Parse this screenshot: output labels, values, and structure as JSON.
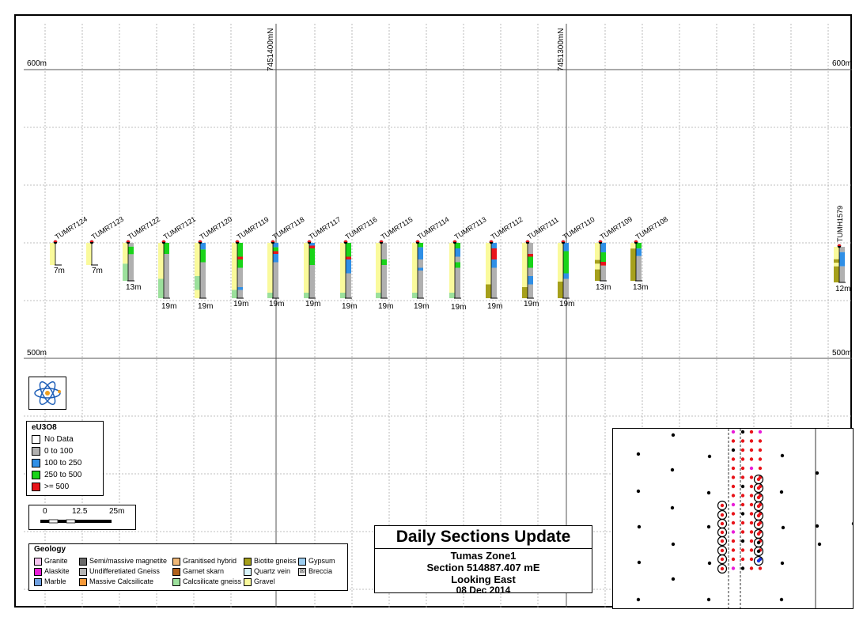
{
  "section": {
    "northing_labels": [
      "7451400mN",
      "7451300mN"
    ],
    "elevation_labels": {
      "top": "600m",
      "bottom": "500m"
    }
  },
  "holes": [
    {
      "id": "TUMR7124",
      "depth": "7m",
      "intervals": [
        {
          "side": "L",
          "from": 0,
          "to": 1,
          "geo": "Gravel"
        },
        {
          "side": "R",
          "from": 0,
          "to": 1,
          "geo": "NoData"
        }
      ]
    },
    {
      "id": "TUMR7123",
      "depth": "7m",
      "intervals": [
        {
          "side": "L",
          "from": 0,
          "to": 1,
          "geo": "Gravel"
        },
        {
          "side": "R",
          "from": 0,
          "to": 1,
          "geo": "NoData"
        }
      ]
    },
    {
      "id": "TUMR7122",
      "depth": "13m",
      "intervals": [
        {
          "side": "L",
          "from": 0,
          "to": 0.55,
          "geo": "Gravel"
        },
        {
          "side": "L",
          "from": 0.55,
          "to": 1,
          "geo": "Calcsilicate gneiss"
        },
        {
          "side": "R",
          "from": 0,
          "to": 0.1,
          "geo": "Grey"
        },
        {
          "side": "R",
          "from": 0.1,
          "to": 0.3,
          "geo": "Green"
        },
        {
          "side": "R",
          "from": 0.3,
          "to": 1,
          "geo": "Grey"
        }
      ]
    },
    {
      "id": "TUMR7121",
      "depth": "19m",
      "intervals": [
        {
          "side": "L",
          "from": 0,
          "to": 0.65,
          "geo": "Gravel"
        },
        {
          "side": "L",
          "from": 0.65,
          "to": 1,
          "geo": "Calcsilicate gneiss"
        },
        {
          "side": "R",
          "from": 0,
          "to": 0.2,
          "geo": "Green"
        },
        {
          "side": "R",
          "from": 0.2,
          "to": 1,
          "geo": "Grey"
        }
      ]
    },
    {
      "id": "TUMR7120",
      "depth": "19m",
      "intervals": [
        {
          "side": "L",
          "from": 0,
          "to": 0.6,
          "geo": "Gravel"
        },
        {
          "side": "L",
          "from": 0.6,
          "to": 0.85,
          "geo": "Calcsilicate gneiss"
        },
        {
          "side": "L",
          "from": 0.85,
          "to": 1,
          "geo": "Gravel"
        },
        {
          "side": "R",
          "from": 0,
          "to": 0.12,
          "geo": "Blue"
        },
        {
          "side": "R",
          "from": 0.12,
          "to": 0.35,
          "geo": "Green"
        },
        {
          "side": "R",
          "from": 0.35,
          "to": 1,
          "geo": "Grey"
        }
      ]
    },
    {
      "id": "TUMR7119",
      "depth": "19m",
      "intervals": [
        {
          "side": "L",
          "from": 0,
          "to": 0.85,
          "geo": "Gravel"
        },
        {
          "side": "L",
          "from": 0.85,
          "to": 1,
          "geo": "Calcsilicate gneiss"
        },
        {
          "side": "R",
          "from": 0,
          "to": 0.25,
          "geo": "Green"
        },
        {
          "side": "R",
          "from": 0.25,
          "to": 0.3,
          "geo": "Red"
        },
        {
          "side": "R",
          "from": 0.3,
          "to": 0.45,
          "geo": "Green"
        },
        {
          "side": "R",
          "from": 0.45,
          "to": 0.8,
          "geo": "Grey"
        },
        {
          "side": "R",
          "from": 0.8,
          "to": 0.85,
          "geo": "Blue"
        },
        {
          "side": "R",
          "from": 0.85,
          "to": 1,
          "geo": "Grey"
        }
      ]
    },
    {
      "id": "TUMR7118",
      "depth": "19m",
      "intervals": [
        {
          "side": "L",
          "from": 0,
          "to": 0.9,
          "geo": "Gravel"
        },
        {
          "side": "L",
          "from": 0.9,
          "to": 1,
          "geo": "Calcsilicate gneiss"
        },
        {
          "side": "R",
          "from": 0,
          "to": 0.08,
          "geo": "Blue"
        },
        {
          "side": "R",
          "from": 0.08,
          "to": 0.15,
          "geo": "Green"
        },
        {
          "side": "R",
          "from": 0.15,
          "to": 0.2,
          "geo": "Red"
        },
        {
          "side": "R",
          "from": 0.2,
          "to": 0.35,
          "geo": "Blue"
        },
        {
          "side": "R",
          "from": 0.35,
          "to": 1,
          "geo": "Grey"
        }
      ]
    },
    {
      "id": "TUMR7117",
      "depth": "19m",
      "intervals": [
        {
          "side": "L",
          "from": 0,
          "to": 0.9,
          "geo": "Gravel"
        },
        {
          "side": "L",
          "from": 0.9,
          "to": 1,
          "geo": "Calcsilicate gneiss"
        },
        {
          "side": "R",
          "from": 0,
          "to": 0.05,
          "geo": "Blue"
        },
        {
          "side": "R",
          "from": 0.05,
          "to": 0.1,
          "geo": "Red"
        },
        {
          "side": "R",
          "from": 0.1,
          "to": 0.4,
          "geo": "Green"
        },
        {
          "side": "R",
          "from": 0.4,
          "to": 1,
          "geo": "Grey"
        }
      ]
    },
    {
      "id": "TUMR7116",
      "depth": "19m",
      "intervals": [
        {
          "side": "L",
          "from": 0,
          "to": 0.9,
          "geo": "Gravel"
        },
        {
          "side": "L",
          "from": 0.9,
          "to": 1,
          "geo": "Calcsilicate gneiss"
        },
        {
          "side": "R",
          "from": 0,
          "to": 0.25,
          "geo": "Green"
        },
        {
          "side": "R",
          "from": 0.25,
          "to": 0.3,
          "geo": "Red"
        },
        {
          "side": "R",
          "from": 0.3,
          "to": 0.55,
          "geo": "Blue"
        },
        {
          "side": "R",
          "from": 0.55,
          "to": 1,
          "geo": "Grey"
        }
      ]
    },
    {
      "id": "TUMR7115",
      "depth": "19m",
      "intervals": [
        {
          "side": "L",
          "from": 0,
          "to": 0.9,
          "geo": "Gravel"
        },
        {
          "side": "L",
          "from": 0.9,
          "to": 1,
          "geo": "Calcsilicate gneiss"
        },
        {
          "side": "R",
          "from": 0,
          "to": 0.3,
          "geo": "Grey"
        },
        {
          "side": "R",
          "from": 0.3,
          "to": 0.4,
          "geo": "Green"
        },
        {
          "side": "R",
          "from": 0.4,
          "to": 1,
          "geo": "Grey"
        }
      ]
    },
    {
      "id": "TUMR7114",
      "depth": "19m",
      "intervals": [
        {
          "side": "L",
          "from": 0,
          "to": 0.9,
          "geo": "Gravel"
        },
        {
          "side": "L",
          "from": 0.9,
          "to": 1,
          "geo": "Calcsilicate gneiss"
        },
        {
          "side": "R",
          "from": 0,
          "to": 0.08,
          "geo": "Green"
        },
        {
          "side": "R",
          "from": 0.08,
          "to": 0.3,
          "geo": "Blue"
        },
        {
          "side": "R",
          "from": 0.3,
          "to": 0.45,
          "geo": "Grey"
        },
        {
          "side": "R",
          "from": 0.45,
          "to": 0.5,
          "geo": "Blue"
        },
        {
          "side": "R",
          "from": 0.5,
          "to": 1,
          "geo": "Grey"
        }
      ]
    },
    {
      "id": "TUMR7113",
      "depth": "19m",
      "intervals": [
        {
          "side": "L",
          "from": 0,
          "to": 0.9,
          "geo": "Gravel"
        },
        {
          "side": "L",
          "from": 0.9,
          "to": 1,
          "geo": "Calcsilicate gneiss"
        },
        {
          "side": "R",
          "from": 0,
          "to": 0.1,
          "geo": "Green"
        },
        {
          "side": "R",
          "from": 0.1,
          "to": 0.25,
          "geo": "Blue"
        },
        {
          "side": "R",
          "from": 0.25,
          "to": 0.35,
          "geo": "Grey"
        },
        {
          "side": "R",
          "from": 0.35,
          "to": 0.45,
          "geo": "Green"
        },
        {
          "side": "R",
          "from": 0.45,
          "to": 1,
          "geo": "Grey"
        }
      ]
    },
    {
      "id": "TUMR7112",
      "depth": "19m",
      "intervals": [
        {
          "side": "L",
          "from": 0,
          "to": 0.75,
          "geo": "Gravel"
        },
        {
          "side": "L",
          "from": 0.75,
          "to": 1,
          "geo": "Biotite gneiss"
        },
        {
          "side": "R",
          "from": 0,
          "to": 0.1,
          "geo": "Blue"
        },
        {
          "side": "R",
          "from": 0.1,
          "to": 0.3,
          "geo": "Red"
        },
        {
          "side": "R",
          "from": 0.3,
          "to": 0.45,
          "geo": "Blue"
        },
        {
          "side": "R",
          "from": 0.45,
          "to": 1,
          "geo": "Grey"
        }
      ]
    },
    {
      "id": "TUMR7111",
      "depth": "19m",
      "intervals": [
        {
          "side": "L",
          "from": 0,
          "to": 0.8,
          "geo": "Gravel"
        },
        {
          "side": "L",
          "from": 0.8,
          "to": 1,
          "geo": "Biotite gneiss"
        },
        {
          "side": "R",
          "from": 0,
          "to": 0.2,
          "geo": "Grey"
        },
        {
          "side": "R",
          "from": 0.2,
          "to": 0.25,
          "geo": "Red"
        },
        {
          "side": "R",
          "from": 0.25,
          "to": 0.45,
          "geo": "Green"
        },
        {
          "side": "R",
          "from": 0.45,
          "to": 0.6,
          "geo": "Grey"
        },
        {
          "side": "R",
          "from": 0.6,
          "to": 0.75,
          "geo": "Blue"
        },
        {
          "side": "R",
          "from": 0.75,
          "to": 1,
          "geo": "Grey"
        }
      ]
    },
    {
      "id": "TUMR7110",
      "depth": "19m",
      "intervals": [
        {
          "side": "L",
          "from": 0,
          "to": 0.7,
          "geo": "Gravel"
        },
        {
          "side": "L",
          "from": 0.7,
          "to": 1,
          "geo": "Biotite gneiss"
        },
        {
          "side": "R",
          "from": 0,
          "to": 0.15,
          "geo": "Blue"
        },
        {
          "side": "R",
          "from": 0.15,
          "to": 0.55,
          "geo": "Green"
        },
        {
          "side": "R",
          "from": 0.55,
          "to": 0.65,
          "geo": "Blue"
        },
        {
          "side": "R",
          "from": 0.65,
          "to": 1,
          "geo": "Grey"
        }
      ]
    },
    {
      "id": "TUMR7109",
      "depth": "13m",
      "intervals": [
        {
          "side": "L",
          "from": 0,
          "to": 0.45,
          "geo": "Gravel"
        },
        {
          "side": "L",
          "from": 0.45,
          "to": 0.55,
          "geo": "Biotite gneiss"
        },
        {
          "side": "L",
          "from": 0.55,
          "to": 0.7,
          "geo": "Gravel"
        },
        {
          "side": "L",
          "from": 0.7,
          "to": 1,
          "geo": "Biotite gneiss"
        },
        {
          "side": "R",
          "from": 0,
          "to": 0.25,
          "geo": "Blue"
        },
        {
          "side": "R",
          "from": 0.25,
          "to": 0.5,
          "geo": "Green"
        },
        {
          "side": "R",
          "from": 0.5,
          "to": 0.6,
          "geo": "Red"
        },
        {
          "side": "R",
          "from": 0.6,
          "to": 1,
          "geo": "Grey"
        }
      ]
    },
    {
      "id": "TUMR7108",
      "depth": "13m",
      "intervals": [
        {
          "side": "L",
          "from": 0,
          "to": 0.15,
          "geo": "Gravel"
        },
        {
          "side": "L",
          "from": 0.15,
          "to": 1,
          "geo": "Biotite gneiss"
        },
        {
          "side": "R",
          "from": 0,
          "to": 0.15,
          "geo": "Green"
        },
        {
          "side": "R",
          "from": 0.15,
          "to": 0.35,
          "geo": "Blue"
        },
        {
          "side": "R",
          "from": 0.35,
          "to": 1,
          "geo": "Grey"
        }
      ]
    },
    {
      "id": "TUMH1579",
      "depth": "12m",
      "intervals": [
        {
          "side": "L",
          "from": 0,
          "to": 0.35,
          "geo": "Gravel"
        },
        {
          "side": "L",
          "from": 0.35,
          "to": 0.45,
          "geo": "Biotite gneiss"
        },
        {
          "side": "L",
          "from": 0.45,
          "to": 0.55,
          "geo": "Gravel"
        },
        {
          "side": "L",
          "from": 0.55,
          "to": 1,
          "geo": "Biotite gneiss"
        },
        {
          "side": "R",
          "from": 0,
          "to": 0.15,
          "geo": "Grey"
        },
        {
          "side": "R",
          "from": 0.15,
          "to": 0.55,
          "geo": "Blue"
        },
        {
          "side": "R",
          "from": 0.55,
          "to": 1,
          "geo": "Grey"
        }
      ]
    }
  ],
  "eu3o8_legend": {
    "title": "eU3O8",
    "items": [
      {
        "label": "No Data",
        "color": "#ffffff"
      },
      {
        "label": "0 to 100",
        "color": "#b0b0b0"
      },
      {
        "label": "100 to 250",
        "color": "#2f8fe6"
      },
      {
        "label": "250 to 500",
        "color": "#19d419"
      },
      {
        "label": ">= 500",
        "color": "#e8141a"
      }
    ]
  },
  "scale_bar": {
    "labels": [
      "0",
      "12.5",
      "25m"
    ]
  },
  "geology_legend": {
    "title": "Geology",
    "items": [
      {
        "label": "Granite",
        "color": "#f6c6f0"
      },
      {
        "label": "Alaskite",
        "color": "#e81ed8"
      },
      {
        "label": "Marble",
        "color": "#6fa0e0"
      },
      {
        "label": "Semi/massive magnetite",
        "color": "#6b6b6b"
      },
      {
        "label": "Undifferetiated Gneiss",
        "color": "#b4b4b4"
      },
      {
        "label": "Massive Calcsilicate",
        "color": "#f59838"
      },
      {
        "label": "Granitised hybrid",
        "color": "#f0b878"
      },
      {
        "label": "Garnet skarn",
        "color": "#b0601c"
      },
      {
        "label": "Calcsilicate gneiss",
        "color": "#9ce09c"
      },
      {
        "label": "Biotite gneiss",
        "color": "#a6a01c"
      },
      {
        "label": "Quartz vein",
        "color": "#d8f4fa"
      },
      {
        "label": "Gravel",
        "color": "#fafa9c"
      },
      {
        "label": "Gypsum",
        "color": "#9ccdf0"
      },
      {
        "label": "Breccia",
        "color": "#e6e6e6"
      }
    ]
  },
  "title_block": {
    "heading": "Daily Sections Update",
    "line1": "Tumas Zone1",
    "line2": "Section 514887.407 mE",
    "line3": "Looking East",
    "line4": "08 Dec 2014"
  },
  "inset_map": {
    "dot_colors": {
      "black": "#000000",
      "red": "#e8141a",
      "magenta": "#e81ed8",
      "blue": "#1a33e0",
      "green": "#19d419"
    }
  },
  "colors": {
    "Gravel": "#fafa9c",
    "Calcsilicate gneiss": "#9ce09c",
    "Biotite gneiss": "#a6a01c",
    "Grey": "#b0b0b0",
    "Blue": "#2f8fe6",
    "Green": "#19d419",
    "Red": "#e8141a",
    "NoData": "#ffffff"
  }
}
